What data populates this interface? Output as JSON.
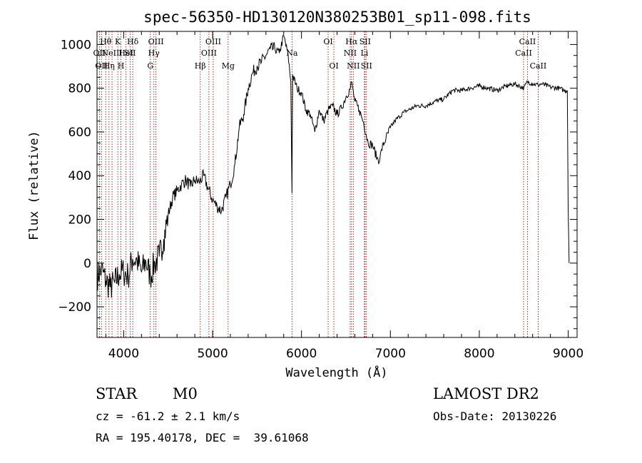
{
  "chart_data": {
    "type": "line",
    "title": "spec-56350-HD130120N380253B01_sp11-098.fits",
    "xlabel": "Wavelength (Å)",
    "ylabel": "Flux (relative)",
    "xlim": [
      3700,
      9100
    ],
    "ylim": [
      -340,
      1060
    ],
    "xticks": [
      4000,
      5000,
      6000,
      7000,
      8000,
      9000
    ],
    "yticks": [
      -200,
      0,
      200,
      400,
      600,
      800,
      1000
    ],
    "grid": false,
    "series": [
      {
        "x": [
          3700,
          3750,
          3800,
          3850,
          3900,
          3950,
          4000,
          4050,
          4100,
          4150,
          4200,
          4250,
          4300,
          4350,
          4400,
          4450,
          4500,
          4550,
          4600,
          4650,
          4700,
          4750,
          4800,
          4850,
          4900,
          4950,
          5000,
          5050,
          5100,
          5150,
          5200,
          5250,
          5300,
          5350,
          5400,
          5450,
          5500,
          5550,
          5600,
          5650,
          5700,
          5750,
          5800,
          5850,
          5880,
          5893,
          5900,
          5950,
          6000,
          6050,
          6100,
          6150,
          6200,
          6250,
          6300,
          6350,
          6400,
          6450,
          6500,
          6550,
          6563,
          6600,
          6650,
          6700,
          6750,
          6800,
          6850,
          6880,
          6900,
          6950,
          7000,
          7050,
          7100,
          7150,
          7200,
          7300,
          7400,
          7500,
          7600,
          7700,
          7800,
          7900,
          8000,
          8100,
          8200,
          8300,
          8400,
          8500,
          8542,
          8600,
          8662,
          8700,
          8800,
          8900,
          8950,
          8990,
          9000,
          9010
        ],
        "y": [
          -60,
          -30,
          -80,
          -110,
          -90,
          -50,
          -40,
          -60,
          20,
          10,
          -40,
          10,
          -60,
          0,
          30,
          110,
          220,
          300,
          330,
          360,
          380,
          350,
          380,
          370,
          400,
          340,
          290,
          260,
          240,
          300,
          360,
          450,
          620,
          680,
          800,
          870,
          900,
          920,
          950,
          980,
          980,
          960,
          1040,
          950,
          830,
          320,
          860,
          800,
          780,
          700,
          680,
          600,
          700,
          650,
          700,
          720,
          680,
          710,
          760,
          800,
          830,
          740,
          700,
          640,
          550,
          540,
          480,
          470,
          520,
          570,
          620,
          650,
          670,
          690,
          700,
          720,
          720,
          740,
          750,
          790,
          790,
          800,
          810,
          800,
          790,
          810,
          820,
          800,
          830,
          820,
          815,
          820,
          805,
          800,
          790,
          790,
          250,
          0
        ]
      }
    ],
    "line_marks": [
      {
        "x": 3727,
        "label": "OII",
        "row": 2
      },
      {
        "x": 3750,
        "label": "OII",
        "row": 3
      },
      {
        "x": 3798,
        "label": "Hθ",
        "row": 1
      },
      {
        "x": 3835,
        "label": "Hη",
        "row": 3
      },
      {
        "x": 3869,
        "label": "NeIII",
        "row": 2
      },
      {
        "x": 3934,
        "label": "K",
        "row": 1
      },
      {
        "x": 3969,
        "label": "H",
        "row": 3
      },
      {
        "x": 4026,
        "label": "HeI",
        "row": 2
      },
      {
        "x": 4072,
        "label": "SII",
        "row": 2
      },
      {
        "x": 4102,
        "label": "Hδ",
        "row": 1
      },
      {
        "x": 4300,
        "label": "G",
        "row": 3
      },
      {
        "x": 4340,
        "label": "Hγ",
        "row": 2
      },
      {
        "x": 4363,
        "label": "OIII",
        "row": 1
      },
      {
        "x": 4861,
        "label": "Hβ",
        "row": 3
      },
      {
        "x": 4959,
        "label": "OIII",
        "row": 2
      },
      {
        "x": 5007,
        "label": "OIII",
        "row": 1
      },
      {
        "x": 5175,
        "label": "Mg",
        "row": 3
      },
      {
        "x": 5893,
        "label": "Na",
        "row": 2
      },
      {
        "x": 6300,
        "label": "OI",
        "row": 1
      },
      {
        "x": 6364,
        "label": "OI",
        "row": 3
      },
      {
        "x": 6548,
        "label": "NII",
        "row": 2
      },
      {
        "x": 6563,
        "label": "Hα",
        "row": 1
      },
      {
        "x": 6583,
        "label": "NII",
        "row": 3
      },
      {
        "x": 6708,
        "label": "Li",
        "row": 2
      },
      {
        "x": 6716,
        "label": "SII",
        "row": 1
      },
      {
        "x": 6731,
        "label": "SII",
        "row": 3
      },
      {
        "x": 8498,
        "label": "CaII",
        "row": 2
      },
      {
        "x": 8542,
        "label": "CaII",
        "row": 1
      },
      {
        "x": 8662,
        "label": "CaII",
        "row": 3
      }
    ],
    "colors": {
      "spectrum": "#000000",
      "line_marks": "#8b0000",
      "axes": "#000000"
    }
  },
  "info": {
    "object_type": "STAR",
    "subclass": "M0",
    "survey": "LAMOST DR2",
    "redshift": "cz = -61.2 ± 2.1 km/s",
    "obs_date": "Obs-Date: 20130226",
    "coords": "RA = 195.40178, DEC =  39.61068"
  }
}
